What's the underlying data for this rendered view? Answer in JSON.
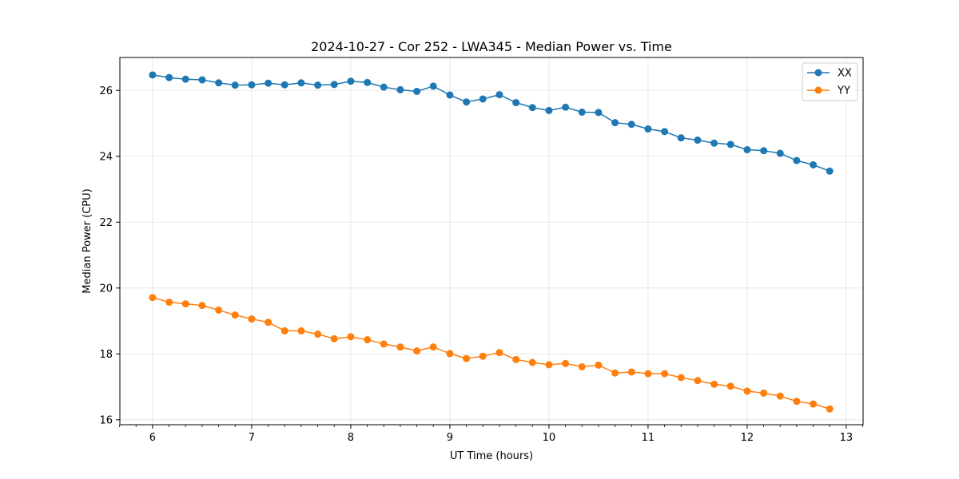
{
  "chart_data": {
    "type": "line",
    "title": "2024-10-27 - Cor 252 - LWA345 - Median Power vs. Time",
    "xlabel": "UT Time (hours)",
    "ylabel": "Median Power (CPU)",
    "xlim": [
      5.67,
      13.17
    ],
    "ylim": [
      15.85,
      27.0
    ],
    "xticks": [
      6,
      7,
      8,
      9,
      10,
      11,
      12,
      13
    ],
    "yticks": [
      16,
      18,
      20,
      22,
      24,
      26
    ],
    "minor_xticks": [
      5.667,
      5.833,
      6.167,
      6.333,
      6.5,
      6.667,
      6.833,
      7.167,
      7.333,
      7.5,
      7.667,
      7.833,
      8.167,
      8.333,
      8.5,
      8.667,
      8.833,
      9.167,
      9.333,
      9.5,
      9.667,
      9.833,
      10.167,
      10.333,
      10.5,
      10.667,
      10.833,
      11.167,
      11.333,
      11.5,
      11.667,
      11.833,
      12.167,
      12.333,
      12.5,
      12.667,
      12.833,
      13.167
    ],
    "grid": true,
    "legend_position": "top-right",
    "x": [
      6.0,
      6.167,
      6.333,
      6.5,
      6.667,
      6.833,
      7.0,
      7.167,
      7.333,
      7.5,
      7.667,
      7.833,
      8.0,
      8.167,
      8.333,
      8.5,
      8.667,
      8.833,
      9.0,
      9.167,
      9.333,
      9.5,
      9.667,
      9.833,
      10.0,
      10.167,
      10.333,
      10.5,
      10.667,
      10.833,
      11.0,
      11.167,
      11.333,
      11.5,
      11.667,
      11.833,
      12.0,
      12.167,
      12.333,
      12.5,
      12.667,
      12.833
    ],
    "series": [
      {
        "name": "XX",
        "color": "#1f77b4",
        "values": [
          26.47,
          26.39,
          26.34,
          26.32,
          26.23,
          26.16,
          26.17,
          26.22,
          26.17,
          26.23,
          26.16,
          26.18,
          26.28,
          26.24,
          26.1,
          26.02,
          25.97,
          26.13,
          25.86,
          25.65,
          25.74,
          25.87,
          25.63,
          25.48,
          25.39,
          25.49,
          25.34,
          25.33,
          25.02,
          24.97,
          24.83,
          24.75,
          24.56,
          24.49,
          24.4,
          24.36,
          24.2,
          24.17,
          24.09,
          23.87,
          23.74,
          23.55
        ]
      },
      {
        "name": "YY",
        "color": "#ff7f0e",
        "values": [
          19.71,
          19.57,
          19.52,
          19.47,
          19.33,
          19.18,
          19.06,
          18.96,
          18.7,
          18.7,
          18.6,
          18.46,
          18.52,
          18.43,
          18.3,
          18.21,
          18.09,
          18.21,
          18.01,
          17.86,
          17.93,
          18.04,
          17.83,
          17.74,
          17.67,
          17.71,
          17.61,
          17.66,
          17.42,
          17.45,
          17.4,
          17.4,
          17.28,
          17.19,
          17.08,
          17.02,
          16.87,
          16.81,
          16.72,
          16.56,
          16.48,
          16.33
        ]
      }
    ]
  }
}
